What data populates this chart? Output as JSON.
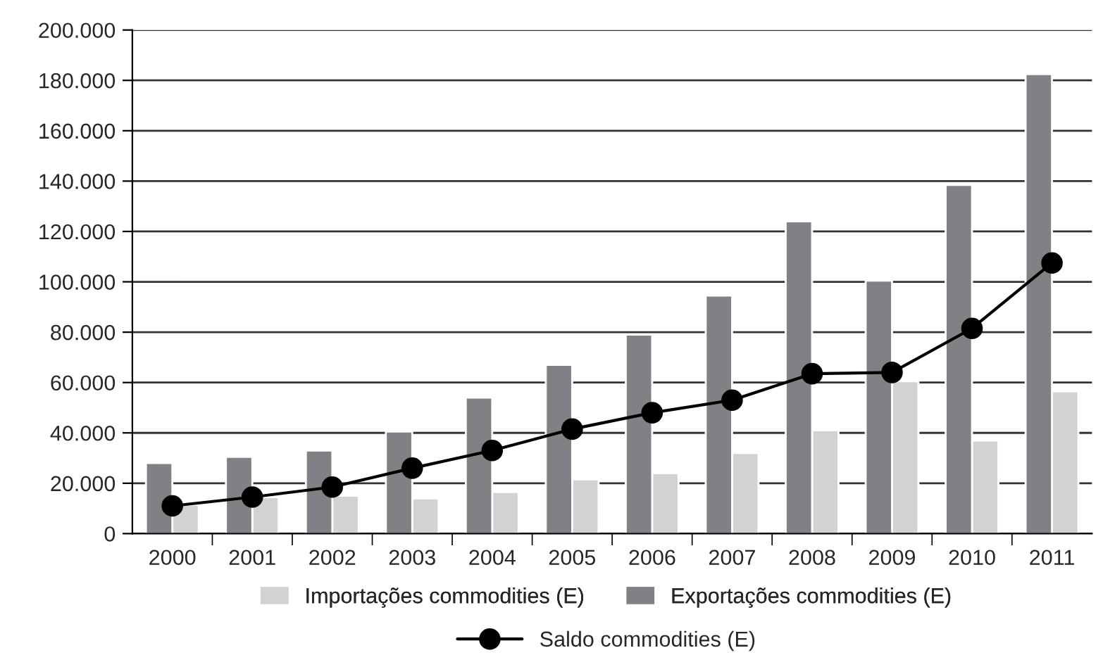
{
  "chart_data": {
    "type": "bar",
    "categories": [
      "2000",
      "2001",
      "2002",
      "2003",
      "2004",
      "2005",
      "2006",
      "2007",
      "2008",
      "2009",
      "2010",
      "2011"
    ],
    "series": [
      {
        "name": "Importações commodities (E)",
        "color": "#d1d2d4",
        "values": [
          11500,
          14500,
          15000,
          14000,
          16500,
          21500,
          24000,
          32000,
          41000,
          60500,
          37000,
          56500
        ]
      },
      {
        "name": "Exportações commodities (E)",
        "color": "#808184",
        "values": [
          28000,
          30500,
          33000,
          40500,
          54000,
          67000,
          79000,
          94500,
          124000,
          100500,
          138500,
          182500
        ]
      },
      {
        "name": "Saldo commodities (E)",
        "type": "line",
        "color": "#000000",
        "marker": "circle",
        "values": [
          11000,
          14500,
          18500,
          26000,
          33000,
          41500,
          48000,
          53000,
          63500,
          64000,
          81500,
          107500
        ]
      }
    ],
    "ylim": [
      0,
      200000
    ],
    "yticks": [
      0,
      {
        "value": 20000,
        "label": "20.000"
      },
      {
        "value": 40000,
        "label": "40.000"
      },
      {
        "value": 60000,
        "label": "60.000"
      },
      {
        "value": 80000,
        "label": "80.000"
      },
      {
        "value": 100000,
        "label": "100.000"
      },
      {
        "value": 120000,
        "label": "120.000"
      },
      {
        "value": 140000,
        "label": "140.000"
      },
      {
        "value": 160000,
        "label": "160.000"
      },
      {
        "value": 180000,
        "label": "180.000"
      },
      {
        "value": 200000,
        "label": "200.000"
      }
    ],
    "grid": "y",
    "legend": "bottom"
  }
}
